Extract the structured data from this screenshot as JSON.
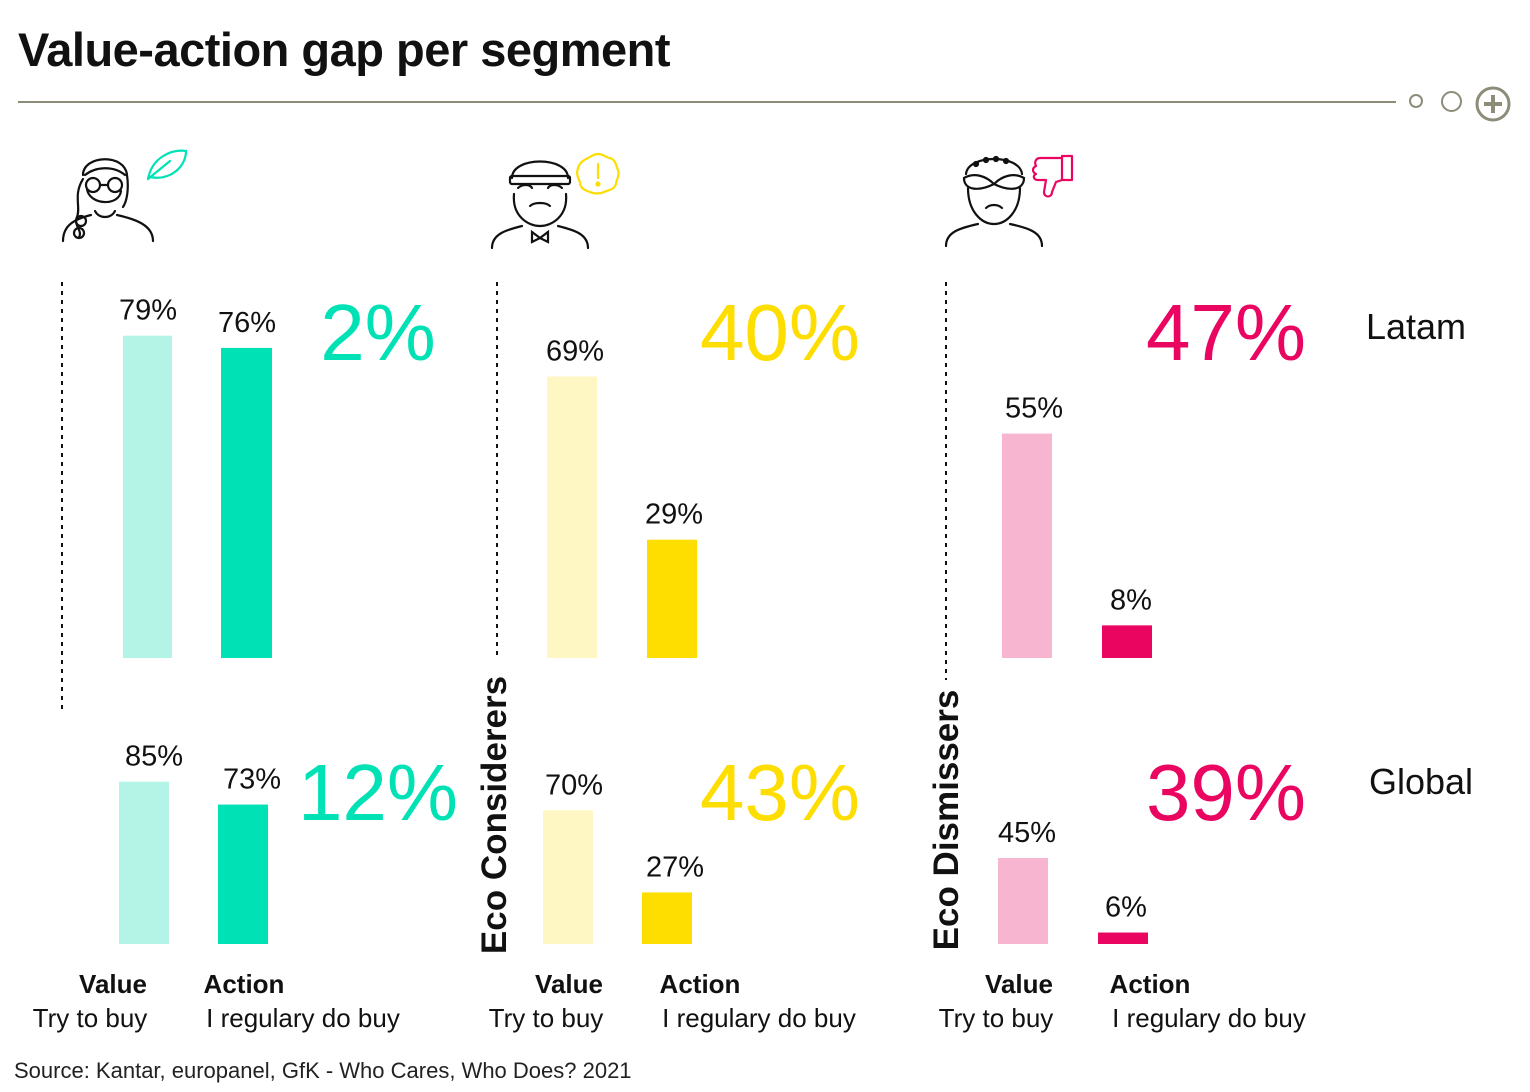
{
  "page": {
    "title": "Value-action gap per segment",
    "source": "Source: Kantar, europanel, GfK - Who Cares, Who Does? 2021"
  },
  "colors": {
    "rule": "#8d8c78",
    "actives_light": "#b3f4e6",
    "actives_dark": "#00e2b5",
    "considerers_light": "#fef7c4",
    "considerers_dark": "#fedd00",
    "dismissers_light": "#f8b5d0",
    "dismissers_dark": "#ea0560"
  },
  "icons": [
    "eco-active-person-icon",
    "leaf-icon",
    "eco-considerer-person-icon",
    "alert-icon",
    "eco-dismisser-person-icon",
    "thumbs-down-icon",
    "expand-plus-icon"
  ],
  "chart_data": {
    "type": "bar",
    "rows": [
      "Latam",
      "Global"
    ],
    "bar_labels": [
      {
        "name": "Value",
        "sub": "Try to buy"
      },
      {
        "name": "Action",
        "sub": "I regulary do buy"
      }
    ],
    "segments": [
      {
        "name": "",
        "gap": {
          "Latam": "2%",
          "Global": "12%"
        },
        "values": {
          "Latam": [
            79,
            76
          ],
          "Global": [
            85,
            73
          ]
        }
      },
      {
        "name": "Eco Considerers",
        "gap": {
          "Latam": "40%",
          "Global": "43%"
        },
        "values": {
          "Latam": [
            69,
            29
          ],
          "Global": [
            70,
            27
          ]
        }
      },
      {
        "name": "Eco Dismissers",
        "gap": {
          "Latam": "47%",
          "Global": "39%"
        },
        "values": {
          "Latam": [
            55,
            8
          ],
          "Global": [
            45,
            6
          ]
        }
      }
    ]
  }
}
